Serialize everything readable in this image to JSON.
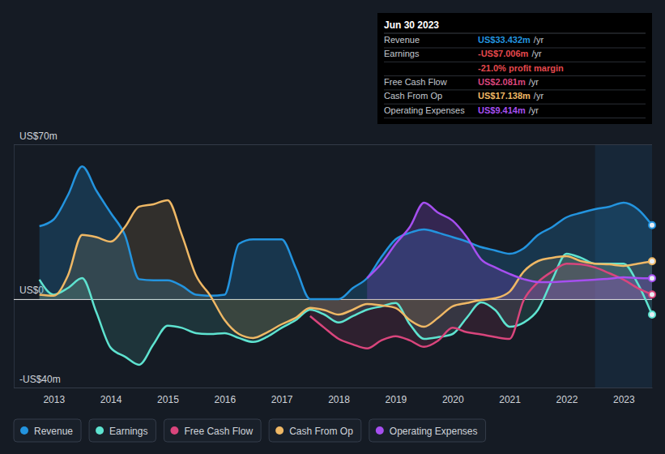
{
  "chart_data": {
    "type": "line",
    "x": [
      2012.75,
      2013,
      2013.25,
      2013.5,
      2013.75,
      2014,
      2014.25,
      2014.5,
      2014.75,
      2015,
      2015.25,
      2015.5,
      2015.75,
      2016,
      2016.25,
      2016.5,
      2016.75,
      2017,
      2017.25,
      2017.5,
      2017.75,
      2018,
      2018.25,
      2018.5,
      2018.75,
      2019,
      2019.25,
      2019.5,
      2019.75,
      2020,
      2020.25,
      2020.5,
      2020.75,
      2021,
      2021.25,
      2021.5,
      2021.75,
      2022,
      2022.25,
      2022.5,
      2022.75,
      2023,
      2023.25,
      2023.5
    ],
    "xlim": [
      2012.3,
      2023.5
    ],
    "xticks": [
      2013,
      2014,
      2015,
      2016,
      2017,
      2018,
      2019,
      2020,
      2021,
      2022,
      2023
    ],
    "ylim": [
      -40,
      70
    ],
    "yticks": [
      {
        "value": -40,
        "label": "-US$40m"
      },
      {
        "value": 0,
        "label": "US$0"
      },
      {
        "value": 70,
        "label": "US$70m"
      }
    ],
    "grid": true,
    "legend": "bottom",
    "series": [
      {
        "name": "Revenue",
        "color": "#2394df",
        "values": [
          33,
          36,
          47,
          60,
          49,
          39,
          29,
          9,
          8.5,
          8.5,
          6,
          2,
          1.5,
          2,
          25,
          27,
          27,
          27,
          14,
          0,
          0,
          0,
          5,
          9.5,
          19,
          27,
          30,
          31.5,
          30,
          28,
          26,
          23.5,
          22,
          20.5,
          23,
          29,
          32.6,
          37,
          39,
          40.7,
          41.8,
          43.6,
          40.7,
          33.432
        ]
      },
      {
        "name": "Earnings",
        "color": "#5ee3d0",
        "values": [
          8.8,
          2,
          5,
          9.5,
          -6,
          -22,
          -26,
          -29.7,
          -20.5,
          -12,
          -13,
          -15.4,
          -15.8,
          -15.4,
          -17.6,
          -19.4,
          -17,
          -13,
          -9.5,
          -4.8,
          -7,
          -10.6,
          -7.7,
          -4.8,
          -3.3,
          -1.8,
          -11.4,
          -18,
          -17.2,
          -15.8,
          -8.4,
          -1.5,
          -5,
          -12.5,
          -10.6,
          -4.8,
          8.8,
          20.5,
          18.7,
          16,
          16,
          16,
          7,
          -7.006
        ]
      },
      {
        "name": "Free Cash Flow",
        "color": "#d9457c",
        "values": [
          null,
          null,
          null,
          null,
          null,
          null,
          null,
          null,
          null,
          null,
          null,
          null,
          null,
          null,
          null,
          null,
          null,
          null,
          null,
          -7.7,
          -13,
          -18,
          -20.5,
          -22.3,
          -18.7,
          -16.8,
          -18.7,
          -21.6,
          -18.7,
          -13,
          -15,
          -16,
          -17.2,
          -18,
          -0.4,
          7.7,
          12.5,
          16,
          15.7,
          14.3,
          11.7,
          8.8,
          5,
          2.081
        ]
      },
      {
        "name": "Cash From Op",
        "color": "#efb865",
        "values": [
          2,
          1.5,
          10.6,
          29,
          28,
          26,
          32.6,
          41.8,
          42.9,
          44.7,
          29,
          10.6,
          1.5,
          -9.5,
          -15.8,
          -17.6,
          -15,
          -11.4,
          -8.4,
          -4,
          -5,
          -7,
          -4.8,
          -2.2,
          -2.9,
          -4,
          -9.5,
          -12.5,
          -8.4,
          -3.3,
          -1.8,
          -0.4,
          0.4,
          3.3,
          12.5,
          17.2,
          18.7,
          19.4,
          17.2,
          16,
          15.7,
          15,
          16,
          17.138
        ]
      },
      {
        "name": "Operating Expenses",
        "color": "#a64ff0",
        "values": [
          null,
          null,
          null,
          null,
          null,
          null,
          null,
          null,
          null,
          null,
          null,
          null,
          null,
          null,
          null,
          null,
          null,
          null,
          null,
          null,
          null,
          null,
          null,
          9.5,
          16,
          25,
          32.6,
          43.6,
          39,
          35.5,
          28,
          18,
          14.3,
          11.4,
          9,
          7.7,
          7.7,
          8,
          8.4,
          8.8,
          9.2,
          9.9,
          9.5,
          9.414
        ]
      }
    ],
    "annotation": {
      "title": "Jun 30 2023",
      "rows": [
        {
          "label": "Revenue",
          "value": "US$33.432m",
          "unit": "/yr",
          "color": "#2394df"
        },
        {
          "label": "Earnings",
          "value": "-US$7.006m",
          "unit": "/yr",
          "color": "#e5484d"
        },
        {
          "text": "-21.0% profit margin",
          "color": "#e5484d"
        },
        {
          "label": "Free Cash Flow",
          "value": "US$2.081m",
          "unit": "/yr",
          "color": "#d9457c"
        },
        {
          "label": "Cash From Op",
          "value": "US$17.138m",
          "unit": "/yr",
          "color": "#efb865"
        },
        {
          "label": "Operating Expenses",
          "value": "US$9.414m",
          "unit": "/yr",
          "color": "#a64ff0"
        }
      ]
    }
  }
}
